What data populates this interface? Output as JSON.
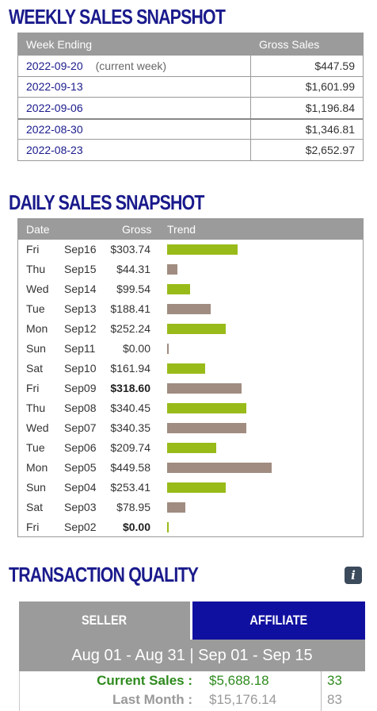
{
  "weekly": {
    "title": "WEEKLY SALES SNAPSHOT",
    "col_week": "Week Ending",
    "col_gross": "Gross Sales",
    "rows": [
      {
        "date": "2022-09-20",
        "note": "(current week)",
        "gross": "$447.59"
      },
      {
        "date": "2022-09-13",
        "note": "",
        "gross": "$1,601.99"
      },
      {
        "date": "2022-09-06",
        "note": "",
        "gross": "$1,196.84"
      },
      {
        "date": "2022-08-30",
        "note": "",
        "gross": "$1,346.81"
      },
      {
        "date": "2022-08-23",
        "note": "",
        "gross": "$2,652.97"
      }
    ]
  },
  "daily": {
    "title": "DAILY SALES SNAPSHOT",
    "col_date": "Date",
    "col_gross": "Gross",
    "col_trend": "Trend",
    "colors": {
      "current": "#99bb1a",
      "prior": "#a08c80"
    },
    "trend_max": 449.58,
    "rows": [
      {
        "day": "Fri",
        "date": "Sep16",
        "gross": "$303.74",
        "value": 303.74,
        "bold": false,
        "current": true
      },
      {
        "day": "Thu",
        "date": "Sep15",
        "gross": "$44.31",
        "value": 44.31,
        "bold": false,
        "current": false
      },
      {
        "day": "Wed",
        "date": "Sep14",
        "gross": "$99.54",
        "value": 99.54,
        "bold": false,
        "current": true
      },
      {
        "day": "Tue",
        "date": "Sep13",
        "gross": "$188.41",
        "value": 188.41,
        "bold": false,
        "current": false
      },
      {
        "day": "Mon",
        "date": "Sep12",
        "gross": "$252.24",
        "value": 252.24,
        "bold": false,
        "current": true
      },
      {
        "day": "Sun",
        "date": "Sep11",
        "gross": "$0.00",
        "value": 0,
        "bold": false,
        "current": false
      },
      {
        "day": "Sat",
        "date": "Sep10",
        "gross": "$161.94",
        "value": 161.94,
        "bold": false,
        "current": true
      },
      {
        "day": "Fri",
        "date": "Sep09",
        "gross": "$318.60",
        "value": 318.6,
        "bold": true,
        "current": false
      },
      {
        "day": "Thu",
        "date": "Sep08",
        "gross": "$340.45",
        "value": 340.45,
        "bold": false,
        "current": true
      },
      {
        "day": "Wed",
        "date": "Sep07",
        "gross": "$340.35",
        "value": 340.35,
        "bold": false,
        "current": false
      },
      {
        "day": "Tue",
        "date": "Sep06",
        "gross": "$209.74",
        "value": 209.74,
        "bold": false,
        "current": true
      },
      {
        "day": "Mon",
        "date": "Sep05",
        "gross": "$449.58",
        "value": 449.58,
        "bold": false,
        "current": false
      },
      {
        "day": "Sun",
        "date": "Sep04",
        "gross": "$253.41",
        "value": 253.41,
        "bold": false,
        "current": true
      },
      {
        "day": "Sat",
        "date": "Sep03",
        "gross": "$78.95",
        "value": 78.95,
        "bold": false,
        "current": false
      },
      {
        "day": "Fri",
        "date": "Sep02",
        "gross": "$0.00",
        "value": 0,
        "bold": true,
        "current": true
      }
    ]
  },
  "quality": {
    "title": "TRANSACTION QUALITY",
    "info_icon": "info-icon",
    "tab_seller": "SELLER",
    "tab_affiliate": "AFFILIATE",
    "range": "Aug 01 - Aug 31 | Sep 01 - Sep 15",
    "current_label": "Current Sales :",
    "current_value": "$5,688.18",
    "current_count": "33",
    "last_label": "Last Month :",
    "last_value": "$15,176.14",
    "last_count": "83"
  }
}
